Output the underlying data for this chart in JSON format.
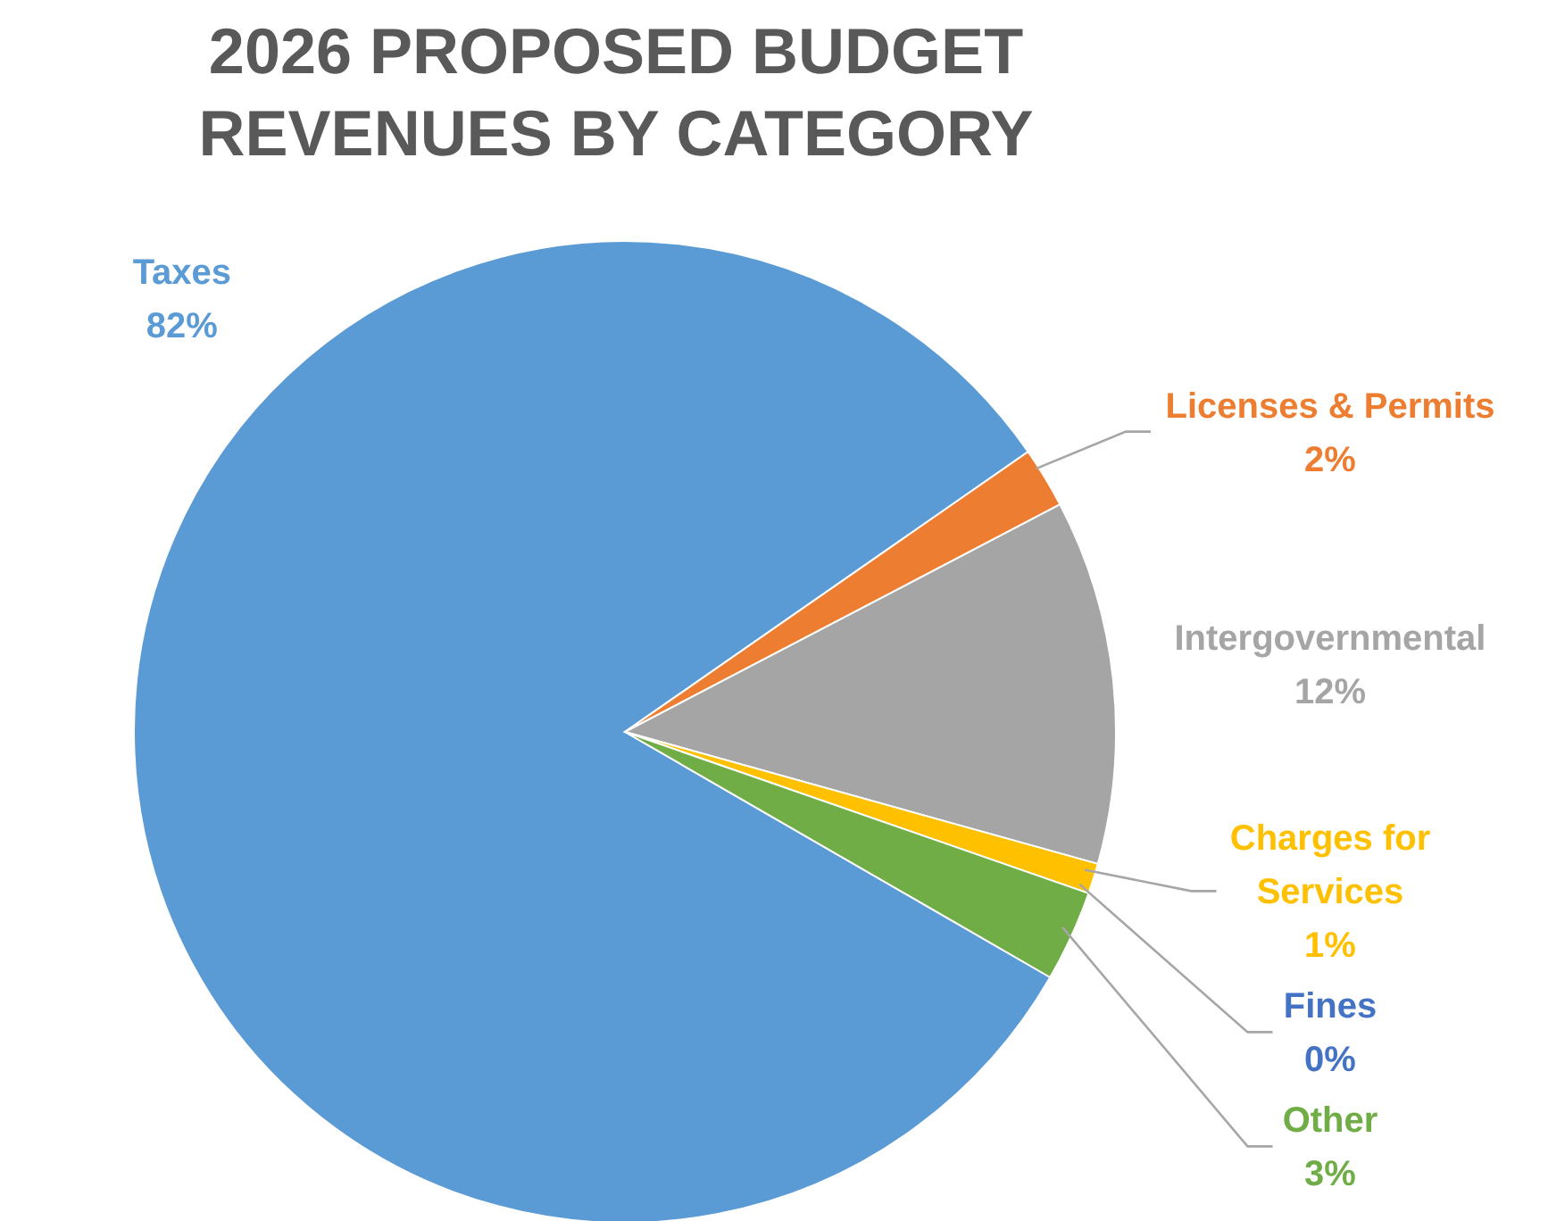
{
  "chart_data": {
    "type": "pie",
    "title": "2026 PROPOSED BUDGET REVENUES BY CATEGORY",
    "categories": [
      "Taxes",
      "Licenses & Permits",
      "Intergovernmental",
      "Charges for Services",
      "Fines",
      "Other"
    ],
    "values": [
      82,
      2,
      12,
      1,
      0,
      3
    ],
    "value_labels": [
      "82%",
      "2%",
      "12%",
      "1%",
      "0%",
      "3%"
    ],
    "colors": [
      "#5b9bd5",
      "#ed7d31",
      "#a5a5a5",
      "#ffc000",
      "#4472c4",
      "#70ad47"
    ],
    "legend": false
  }
}
